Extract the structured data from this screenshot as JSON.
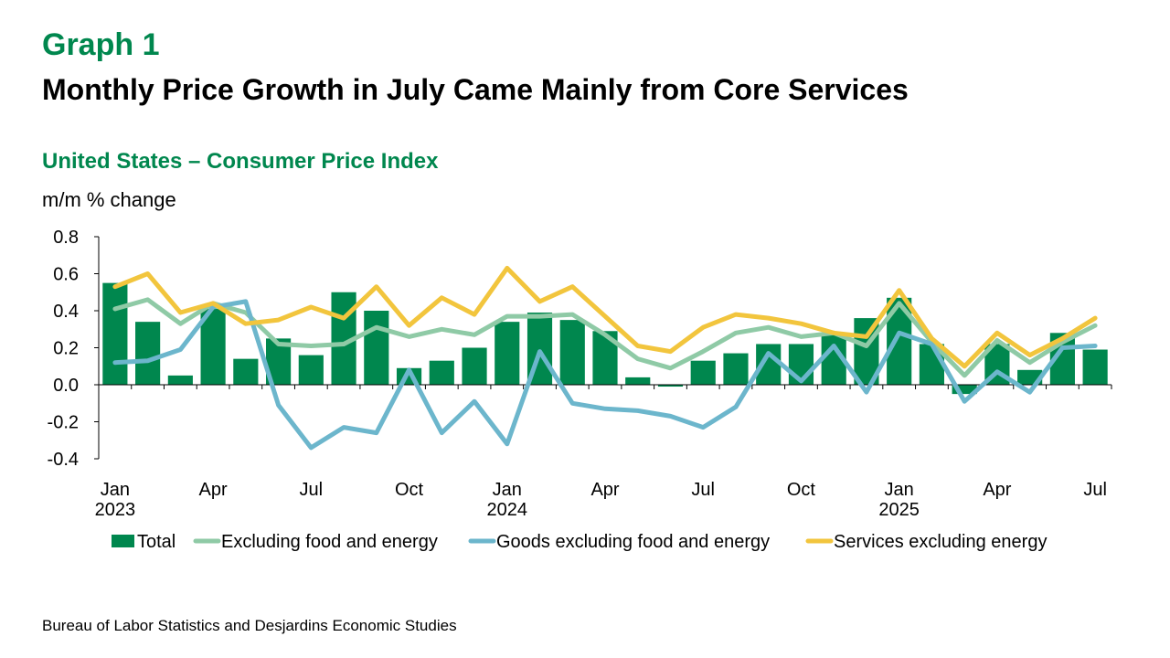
{
  "header": {
    "graph_label": "Graph 1",
    "title": "Monthly Price Growth in July Came Mainly from Core Services"
  },
  "chart_data": {
    "type": "bar",
    "title": "United States – Consumer Price Index",
    "ylabel": "m/m % change",
    "ylim": [
      -0.4,
      0.8
    ],
    "yticks": [
      -0.4,
      -0.2,
      0.0,
      0.2,
      0.4,
      0.6,
      0.8
    ],
    "ytick_labels": [
      "-0.4",
      "-0.2",
      "0.0",
      "0.2",
      "0.4",
      "0.6",
      "0.8"
    ],
    "categories": [
      "2023-01",
      "2023-02",
      "2023-03",
      "2023-04",
      "2023-05",
      "2023-06",
      "2023-07",
      "2023-08",
      "2023-09",
      "2023-10",
      "2023-11",
      "2023-12",
      "2024-01",
      "2024-02",
      "2024-03",
      "2024-04",
      "2024-05",
      "2024-06",
      "2024-07",
      "2024-08",
      "2024-09",
      "2024-10",
      "2024-11",
      "2024-12",
      "2025-01",
      "2025-02",
      "2025-03",
      "2025-04",
      "2025-05",
      "2025-06",
      "2025-07"
    ],
    "x_tick_labels": [
      {
        "index": 0,
        "lines": [
          "Jan",
          "2023"
        ]
      },
      {
        "index": 3,
        "lines": [
          "Apr"
        ]
      },
      {
        "index": 6,
        "lines": [
          "Jul"
        ]
      },
      {
        "index": 9,
        "lines": [
          "Oct"
        ]
      },
      {
        "index": 12,
        "lines": [
          "Jan",
          "2024"
        ]
      },
      {
        "index": 15,
        "lines": [
          "Apr"
        ]
      },
      {
        "index": 18,
        "lines": [
          "Jul"
        ]
      },
      {
        "index": 21,
        "lines": [
          "Oct"
        ]
      },
      {
        "index": 24,
        "lines": [
          "Jan",
          "2025"
        ]
      },
      {
        "index": 27,
        "lines": [
          "Apr"
        ]
      },
      {
        "index": 30,
        "lines": [
          "Jul"
        ]
      }
    ],
    "series": [
      {
        "name": "Total",
        "kind": "bar",
        "color": "#00874e",
        "values": [
          0.55,
          0.34,
          0.05,
          0.41,
          0.14,
          0.25,
          0.16,
          0.5,
          0.4,
          0.09,
          0.13,
          0.2,
          0.34,
          0.39,
          0.35,
          0.29,
          0.04,
          -0.01,
          0.13,
          0.17,
          0.22,
          0.22,
          0.27,
          0.36,
          0.47,
          0.22,
          -0.05,
          0.22,
          0.08,
          0.28,
          0.19
        ]
      },
      {
        "name": "Excluding food and energy",
        "kind": "line",
        "color": "#8fcaa6",
        "values": [
          0.41,
          0.46,
          0.33,
          0.44,
          0.39,
          0.22,
          0.21,
          0.22,
          0.31,
          0.26,
          0.3,
          0.27,
          0.37,
          0.37,
          0.38,
          0.27,
          0.14,
          0.09,
          0.18,
          0.28,
          0.31,
          0.26,
          0.28,
          0.21,
          0.44,
          0.23,
          0.05,
          0.24,
          0.12,
          0.23,
          0.32
        ]
      },
      {
        "name": "Goods excluding food and energy",
        "kind": "line",
        "color": "#6cb6cc",
        "values": [
          0.12,
          0.13,
          0.19,
          0.42,
          0.45,
          -0.11,
          -0.34,
          -0.23,
          -0.26,
          0.08,
          -0.26,
          -0.09,
          -0.32,
          0.18,
          -0.1,
          -0.13,
          -0.14,
          -0.17,
          -0.23,
          -0.12,
          0.17,
          0.02,
          0.21,
          -0.04,
          0.28,
          0.22,
          -0.09,
          0.07,
          -0.04,
          0.2,
          0.21
        ]
      },
      {
        "name": "Services excluding energy",
        "kind": "line",
        "color": "#f2c53d",
        "values": [
          0.53,
          0.6,
          0.39,
          0.44,
          0.33,
          0.35,
          0.42,
          0.36,
          0.53,
          0.32,
          0.47,
          0.38,
          0.63,
          0.45,
          0.53,
          0.37,
          0.21,
          0.18,
          0.31,
          0.38,
          0.36,
          0.33,
          0.28,
          0.26,
          0.51,
          0.25,
          0.1,
          0.28,
          0.16,
          0.25,
          0.36
        ]
      }
    ],
    "legend_position": "bottom",
    "grid": false
  },
  "footer": {
    "source": "Bureau of Labor Statistics and Desjardins Economic Studies"
  }
}
